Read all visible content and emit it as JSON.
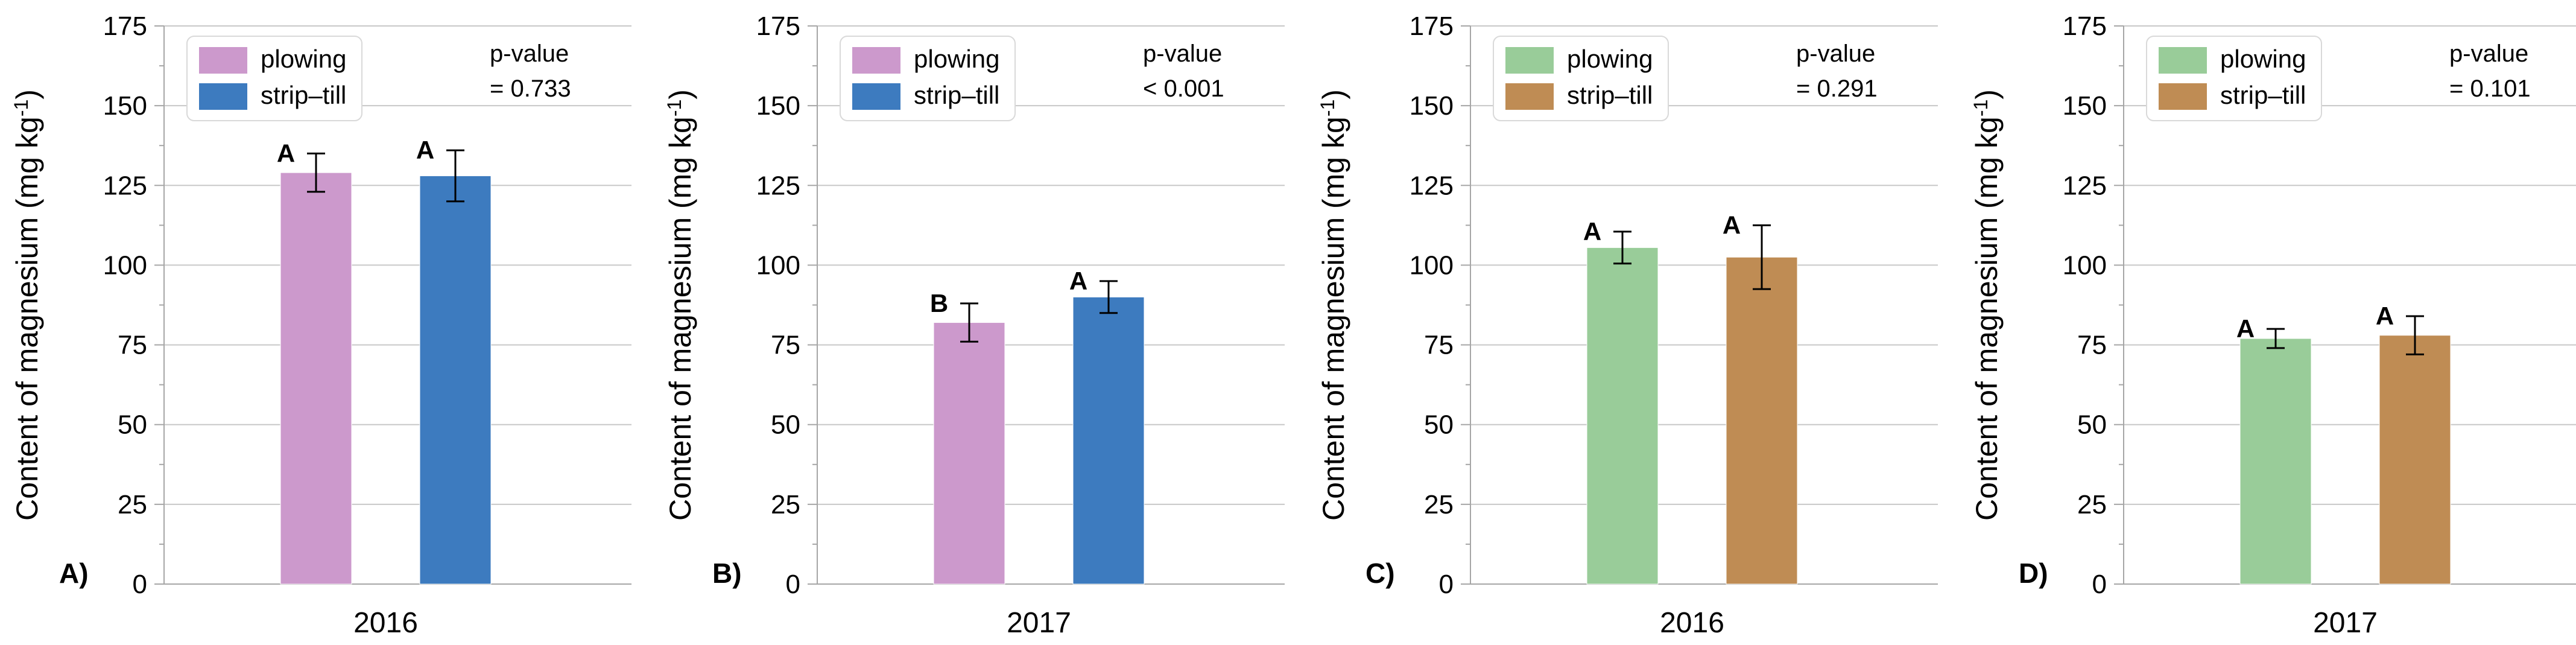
{
  "figure": {
    "y_axis_label": "Content of magnesium (mg kg",
    "y_axis_label_sup": "-1",
    "y_axis_label_close": ")"
  },
  "chart_data": [
    {
      "type": "bar",
      "panel_label": "A)",
      "categories": [
        "2016"
      ],
      "ylabel": "Content of magnesium (mg kg-1)",
      "ylim": [
        0,
        175
      ],
      "yticks": [
        0,
        25,
        50,
        75,
        100,
        125,
        150,
        175
      ],
      "grid": true,
      "legend_position": "top-left",
      "p_value_line1": "p-value",
      "p_value_line2": "= 0.733",
      "series": [
        {
          "name": "plowing",
          "color": "#cc99cc",
          "values": [
            129
          ],
          "error": [
            6
          ],
          "letter": "A"
        },
        {
          "name": "strip–till",
          "color": "#3d7bbf",
          "values": [
            128
          ],
          "error": [
            8
          ],
          "letter": "A"
        }
      ]
    },
    {
      "type": "bar",
      "panel_label": "B)",
      "categories": [
        "2017"
      ],
      "ylabel": "Content of magnesium (mg kg-1)",
      "ylim": [
        0,
        175
      ],
      "yticks": [
        0,
        25,
        50,
        75,
        100,
        125,
        150,
        175
      ],
      "grid": true,
      "legend_position": "top-left",
      "p_value_line1": "p-value",
      "p_value_line2": "< 0.001",
      "series": [
        {
          "name": "plowing",
          "color": "#cc99cc",
          "values": [
            82
          ],
          "error": [
            6
          ],
          "letter": "B"
        },
        {
          "name": "strip–till",
          "color": "#3d7bbf",
          "values": [
            90
          ],
          "error": [
            5
          ],
          "letter": "A"
        }
      ]
    },
    {
      "type": "bar",
      "panel_label": "C)",
      "categories": [
        "2016"
      ],
      "ylabel": "Content of magnesium (mg kg-1)",
      "ylim": [
        0,
        175
      ],
      "yticks": [
        0,
        25,
        50,
        75,
        100,
        125,
        150,
        175
      ],
      "grid": true,
      "legend_position": "top-left",
      "p_value_line1": "p-value",
      "p_value_line2": "= 0.291",
      "series": [
        {
          "name": "plowing",
          "color": "#99cc99",
          "values": [
            105.5
          ],
          "error": [
            5
          ],
          "letter": "A"
        },
        {
          "name": "strip–till",
          "color": "#bf8c54",
          "values": [
            102.5
          ],
          "error": [
            10
          ],
          "letter": "A"
        }
      ]
    },
    {
      "type": "bar",
      "panel_label": "D)",
      "categories": [
        "2017"
      ],
      "ylabel": "Content of magnesium (mg kg-1)",
      "ylim": [
        0,
        175
      ],
      "yticks": [
        0,
        25,
        50,
        75,
        100,
        125,
        150,
        175
      ],
      "grid": true,
      "legend_position": "top-left",
      "p_value_line1": "p-value",
      "p_value_line2": "= 0.101",
      "series": [
        {
          "name": "plowing",
          "color": "#99cc99",
          "values": [
            77
          ],
          "error": [
            3
          ],
          "letter": "A"
        },
        {
          "name": "strip–till",
          "color": "#bf8c54",
          "values": [
            78
          ],
          "error": [
            6
          ],
          "letter": "A"
        }
      ]
    }
  ]
}
